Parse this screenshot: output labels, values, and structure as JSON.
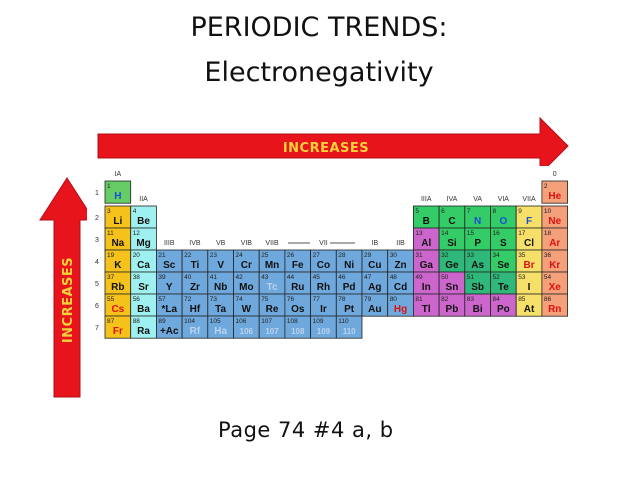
{
  "title_line1": "PERIODIC TRENDS:",
  "title_line2": "Electronegativity",
  "arrow_horizontal_label": "INCREASES",
  "arrow_vertical_label": "INCREASES",
  "footer": "Page 74 #4 a, b",
  "colors": {
    "arrow": "#e8141b",
    "arrow_label": "#f6d23a",
    "alkali": "#f5c21b",
    "alkaline_earth": "#9ff0f0",
    "transition": "#6fa8dc",
    "metal": "#9e9ea3",
    "metalloid": "#2fb879",
    "nonmetal": "#33cc66",
    "halogen": "#f6e06a",
    "noble_gas": "#f4a07a",
    "hydrogen": "#66cc66",
    "lanthanide": "#cc66cc"
  },
  "group_labels": [
    {
      "text": "IA",
      "col": 1,
      "row": 0
    },
    {
      "text": "IIA",
      "col": 2,
      "row": 1
    },
    {
      "text": "IIIB",
      "col": 3,
      "row": 3
    },
    {
      "text": "IVB",
      "col": 4,
      "row": 3
    },
    {
      "text": "VB",
      "col": 5,
      "row": 3
    },
    {
      "text": "VIB",
      "col": 6,
      "row": 3
    },
    {
      "text": "VIIB",
      "col": 7,
      "row": 3
    },
    {
      "text": "VII",
      "col": 9,
      "row": 3
    },
    {
      "text": "IB",
      "col": 11,
      "row": 3
    },
    {
      "text": "IIB",
      "col": 12,
      "row": 3
    },
    {
      "text": "IIIA",
      "col": 13,
      "row": 1
    },
    {
      "text": "IVA",
      "col": 14,
      "row": 1
    },
    {
      "text": "VA",
      "col": 15,
      "row": 1
    },
    {
      "text": "VIA",
      "col": 16,
      "row": 1
    },
    {
      "text": "VIIA",
      "col": 17,
      "row": 1
    },
    {
      "text": "0",
      "col": 18,
      "row": 0
    }
  ],
  "period_numbers": [
    "1",
    "2",
    "3",
    "4",
    "5",
    "6",
    "7"
  ],
  "elements": [
    {
      "n": "1",
      "s": "H",
      "row": 1,
      "col": 1,
      "cat": "hydrogen"
    },
    {
      "n": "2",
      "s": "He",
      "row": 1,
      "col": 18,
      "cat": "noble_gas"
    },
    {
      "n": "3",
      "s": "Li",
      "row": 2,
      "col": 1,
      "cat": "alkali"
    },
    {
      "n": "4",
      "s": "Be",
      "row": 2,
      "col": 2,
      "cat": "alkaline_earth"
    },
    {
      "n": "5",
      "s": "B",
      "row": 2,
      "col": 13,
      "cat": "nonmetal"
    },
    {
      "n": "6",
      "s": "C",
      "row": 2,
      "col": 14,
      "cat": "nonmetal"
    },
    {
      "n": "7",
      "s": "N",
      "row": 2,
      "col": 15,
      "cat": "nonmetal"
    },
    {
      "n": "8",
      "s": "O",
      "row": 2,
      "col": 16,
      "cat": "nonmetal"
    },
    {
      "n": "9",
      "s": "F",
      "row": 2,
      "col": 17,
      "cat": "halogen"
    },
    {
      "n": "10",
      "s": "Ne",
      "row": 2,
      "col": 18,
      "cat": "noble_gas"
    },
    {
      "n": "11",
      "s": "Na",
      "row": 3,
      "col": 1,
      "cat": "alkali"
    },
    {
      "n": "12",
      "s": "Mg",
      "row": 3,
      "col": 2,
      "cat": "alkaline_earth"
    },
    {
      "n": "13",
      "s": "Al",
      "row": 3,
      "col": 13,
      "cat": "lanthanide"
    },
    {
      "n": "14",
      "s": "Si",
      "row": 3,
      "col": 14,
      "cat": "nonmetal"
    },
    {
      "n": "15",
      "s": "P",
      "row": 3,
      "col": 15,
      "cat": "nonmetal"
    },
    {
      "n": "16",
      "s": "S",
      "row": 3,
      "col": 16,
      "cat": "nonmetal"
    },
    {
      "n": "17",
      "s": "Cl",
      "row": 3,
      "col": 17,
      "cat": "halogen"
    },
    {
      "n": "18",
      "s": "Ar",
      "row": 3,
      "col": 18,
      "cat": "noble_gas"
    },
    {
      "n": "19",
      "s": "K",
      "row": 4,
      "col": 1,
      "cat": "alkali"
    },
    {
      "n": "20",
      "s": "Ca",
      "row": 4,
      "col": 2,
      "cat": "alkaline_earth"
    },
    {
      "n": "21",
      "s": "Sc",
      "row": 4,
      "col": 3,
      "cat": "transition"
    },
    {
      "n": "22",
      "s": "Ti",
      "row": 4,
      "col": 4,
      "cat": "transition"
    },
    {
      "n": "23",
      "s": "V",
      "row": 4,
      "col": 5,
      "cat": "transition"
    },
    {
      "n": "24",
      "s": "Cr",
      "row": 4,
      "col": 6,
      "cat": "transition"
    },
    {
      "n": "25",
      "s": "Mn",
      "row": 4,
      "col": 7,
      "cat": "transition"
    },
    {
      "n": "26",
      "s": "Fe",
      "row": 4,
      "col": 8,
      "cat": "transition"
    },
    {
      "n": "27",
      "s": "Co",
      "row": 4,
      "col": 9,
      "cat": "transition"
    },
    {
      "n": "28",
      "s": "Ni",
      "row": 4,
      "col": 10,
      "cat": "transition"
    },
    {
      "n": "29",
      "s": "Cu",
      "row": 4,
      "col": 11,
      "cat": "transition"
    },
    {
      "n": "30",
      "s": "Zn",
      "row": 4,
      "col": 12,
      "cat": "transition"
    },
    {
      "n": "31",
      "s": "Ga",
      "row": 4,
      "col": 13,
      "cat": "lanthanide"
    },
    {
      "n": "32",
      "s": "Ge",
      "row": 4,
      "col": 14,
      "cat": "metalloid"
    },
    {
      "n": "33",
      "s": "As",
      "row": 4,
      "col": 15,
      "cat": "metalloid"
    },
    {
      "n": "34",
      "s": "Se",
      "row": 4,
      "col": 16,
      "cat": "nonmetal"
    },
    {
      "n": "35",
      "s": "Br",
      "row": 4,
      "col": 17,
      "cat": "halogen"
    },
    {
      "n": "36",
      "s": "Kr",
      "row": 4,
      "col": 18,
      "cat": "noble_gas"
    },
    {
      "n": "37",
      "s": "Rb",
      "row": 5,
      "col": 1,
      "cat": "alkali"
    },
    {
      "n": "38",
      "s": "Sr",
      "row": 5,
      "col": 2,
      "cat": "alkaline_earth"
    },
    {
      "n": "39",
      "s": "Y",
      "row": 5,
      "col": 3,
      "cat": "transition"
    },
    {
      "n": "40",
      "s": "Zr",
      "row": 5,
      "col": 4,
      "cat": "transition"
    },
    {
      "n": "41",
      "s": "Nb",
      "row": 5,
      "col": 5,
      "cat": "transition"
    },
    {
      "n": "42",
      "s": "Mo",
      "row": 5,
      "col": 6,
      "cat": "transition"
    },
    {
      "n": "43",
      "s": "Tc",
      "row": 5,
      "col": 7,
      "cat": "transition"
    },
    {
      "n": "44",
      "s": "Ru",
      "row": 5,
      "col": 8,
      "cat": "transition"
    },
    {
      "n": "45",
      "s": "Rh",
      "row": 5,
      "col": 9,
      "cat": "transition"
    },
    {
      "n": "46",
      "s": "Pd",
      "row": 5,
      "col": 10,
      "cat": "transition"
    },
    {
      "n": "47",
      "s": "Ag",
      "row": 5,
      "col": 11,
      "cat": "transition"
    },
    {
      "n": "48",
      "s": "Cd",
      "row": 5,
      "col": 12,
      "cat": "transition"
    },
    {
      "n": "49",
      "s": "In",
      "row": 5,
      "col": 13,
      "cat": "lanthanide"
    },
    {
      "n": "50",
      "s": "Sn",
      "row": 5,
      "col": 14,
      "cat": "lanthanide"
    },
    {
      "n": "51",
      "s": "Sb",
      "row": 5,
      "col": 15,
      "cat": "metalloid"
    },
    {
      "n": "52",
      "s": "Te",
      "row": 5,
      "col": 16,
      "cat": "metalloid"
    },
    {
      "n": "53",
      "s": "I",
      "row": 5,
      "col": 17,
      "cat": "halogen"
    },
    {
      "n": "54",
      "s": "Xe",
      "row": 5,
      "col": 18,
      "cat": "noble_gas"
    },
    {
      "n": "55",
      "s": "Cs",
      "row": 6,
      "col": 1,
      "cat": "alkali"
    },
    {
      "n": "56",
      "s": "Ba",
      "row": 6,
      "col": 2,
      "cat": "alkaline_earth"
    },
    {
      "n": "57",
      "s": "*La",
      "row": 6,
      "col": 3,
      "cat": "transition"
    },
    {
      "n": "72",
      "s": "Hf",
      "row": 6,
      "col": 4,
      "cat": "transition"
    },
    {
      "n": "73",
      "s": "Ta",
      "row": 6,
      "col": 5,
      "cat": "transition"
    },
    {
      "n": "74",
      "s": "W",
      "row": 6,
      "col": 6,
      "cat": "transition"
    },
    {
      "n": "75",
      "s": "Re",
      "row": 6,
      "col": 7,
      "cat": "transition"
    },
    {
      "n": "76",
      "s": "Os",
      "row": 6,
      "col": 8,
      "cat": "transition"
    },
    {
      "n": "77",
      "s": "Ir",
      "row": 6,
      "col": 9,
      "cat": "transition"
    },
    {
      "n": "78",
      "s": "Pt",
      "row": 6,
      "col": 10,
      "cat": "transition"
    },
    {
      "n": "79",
      "s": "Au",
      "row": 6,
      "col": 11,
      "cat": "transition"
    },
    {
      "n": "80",
      "s": "Hg",
      "row": 6,
      "col": 12,
      "cat": "transition"
    },
    {
      "n": "81",
      "s": "Tl",
      "row": 6,
      "col": 13,
      "cat": "lanthanide"
    },
    {
      "n": "82",
      "s": "Pb",
      "row": 6,
      "col": 14,
      "cat": "lanthanide"
    },
    {
      "n": "83",
      "s": "Bi",
      "row": 6,
      "col": 15,
      "cat": "lanthanide"
    },
    {
      "n": "84",
      "s": "Po",
      "row": 6,
      "col": 16,
      "cat": "lanthanide"
    },
    {
      "n": "85",
      "s": "At",
      "row": 6,
      "col": 17,
      "cat": "halogen"
    },
    {
      "n": "86",
      "s": "Rn",
      "row": 6,
      "col": 18,
      "cat": "noble_gas"
    },
    {
      "n": "87",
      "s": "Fr",
      "row": 7,
      "col": 1,
      "cat": "alkali"
    },
    {
      "n": "88",
      "s": "Ra",
      "row": 7,
      "col": 2,
      "cat": "alkaline_earth"
    },
    {
      "n": "89",
      "s": "+Ac",
      "row": 7,
      "col": 3,
      "cat": "transition"
    },
    {
      "n": "104",
      "s": "Rf",
      "row": 7,
      "col": 4,
      "cat": "transition"
    },
    {
      "n": "105",
      "s": "Ha",
      "row": 7,
      "col": 5,
      "cat": "transition"
    },
    {
      "n": "106",
      "s": "106",
      "row": 7,
      "col": 6,
      "cat": "transition"
    },
    {
      "n": "107",
      "s": "107",
      "row": 7,
      "col": 7,
      "cat": "transition"
    },
    {
      "n": "108",
      "s": "108",
      "row": 7,
      "col": 8,
      "cat": "transition"
    },
    {
      "n": "109",
      "s": "109",
      "row": 7,
      "col": 9,
      "cat": "transition"
    },
    {
      "n": "110",
      "s": "110",
      "row": 7,
      "col": 10,
      "cat": "transition"
    }
  ]
}
